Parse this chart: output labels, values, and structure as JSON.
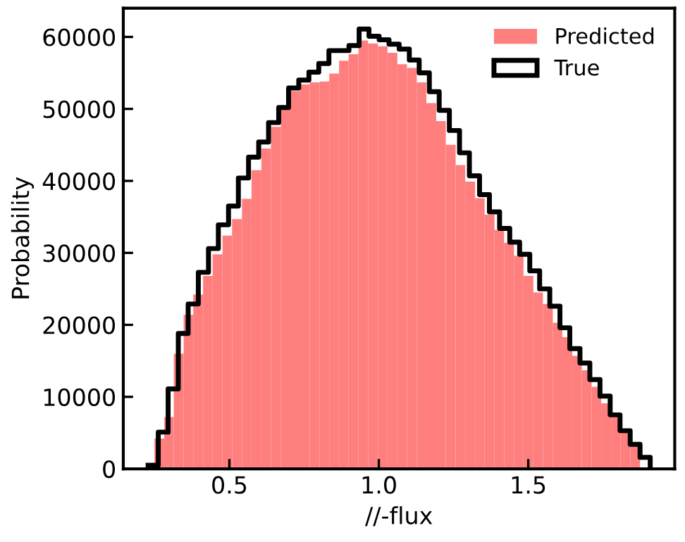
{
  "chart_data": {
    "type": "histogram",
    "xlabel": "//-flux",
    "ylabel": "Probability",
    "xlim": [
      0.145,
      1.99
    ],
    "ylim": [
      0,
      64000
    ],
    "xticks": [
      {
        "value": 0.5,
        "label": "0.5"
      },
      {
        "value": 1.0,
        "label": "1.0"
      },
      {
        "value": 1.5,
        "label": "1.5"
      }
    ],
    "yticks": [
      0,
      10000,
      20000,
      30000,
      40000,
      50000,
      60000
    ],
    "legend": "top right",
    "grid": false,
    "bins": [
      0.249,
      0.282,
      0.314,
      0.347,
      0.379,
      0.412,
      0.444,
      0.477,
      0.509,
      0.542,
      0.574,
      0.607,
      0.639,
      0.672,
      0.704,
      0.737,
      0.769,
      0.802,
      0.834,
      0.867,
      0.899,
      0.932,
      0.964,
      0.997,
      1.029,
      1.062,
      1.094,
      1.127,
      1.159,
      1.192,
      1.224,
      1.257,
      1.289,
      1.322,
      1.354,
      1.387,
      1.419,
      1.452,
      1.484,
      1.517,
      1.549,
      1.582,
      1.614,
      1.647,
      1.679,
      1.712,
      1.744,
      1.777,
      1.809,
      1.842,
      1.874
    ],
    "series": [
      {
        "name": "Predicted",
        "color": "#ff7f7f",
        "values": [
          4200,
          7200,
          16000,
          21400,
          24200,
          26800,
          29800,
          32400,
          34700,
          37500,
          41500,
          44500,
          47500,
          50500,
          52500,
          53400,
          53700,
          53800,
          54900,
          56700,
          57600,
          59500,
          59100,
          58700,
          57800,
          56200,
          55700,
          53700,
          50800,
          48300,
          45000,
          42200,
          39900,
          37600,
          35300,
          33200,
          31400,
          29600,
          26800,
          24500,
          22900,
          20300,
          18300,
          15700,
          13700,
          11400,
          9100,
          7200,
          5200,
          3200
        ]
      },
      {
        "name": "True",
        "type": "step",
        "color": "#000000",
        "x": [
          0.228,
          0.262,
          0.295,
          0.329,
          0.362,
          0.396,
          0.43,
          0.463,
          0.497,
          0.53,
          0.564,
          0.598,
          0.631,
          0.665,
          0.698,
          0.732,
          0.766,
          0.799,
          0.833,
          0.866,
          0.9,
          0.934,
          0.967,
          1.001,
          1.034,
          1.068,
          1.102,
          1.135,
          1.169,
          1.202,
          1.236,
          1.27,
          1.303,
          1.337,
          1.37,
          1.404,
          1.438,
          1.471,
          1.505,
          1.538,
          1.572,
          1.606,
          1.639,
          1.673,
          1.706,
          1.74,
          1.774,
          1.807,
          1.841,
          1.874,
          1.908
        ],
        "values": [
          500,
          5100,
          11100,
          18800,
          22900,
          27300,
          30600,
          33900,
          36500,
          40400,
          43300,
          45400,
          48100,
          50200,
          52900,
          54000,
          55100,
          56300,
          58100,
          58100,
          58800,
          61100,
          60100,
          59600,
          59000,
          58300,
          56800,
          55000,
          52400,
          49800,
          47000,
          43900,
          40700,
          38100,
          35700,
          33400,
          31500,
          29800,
          27500,
          25000,
          22600,
          19600,
          16700,
          14700,
          12400,
          10100,
          7500,
          5300,
          3400,
          1600,
          0
        ]
      }
    ]
  }
}
